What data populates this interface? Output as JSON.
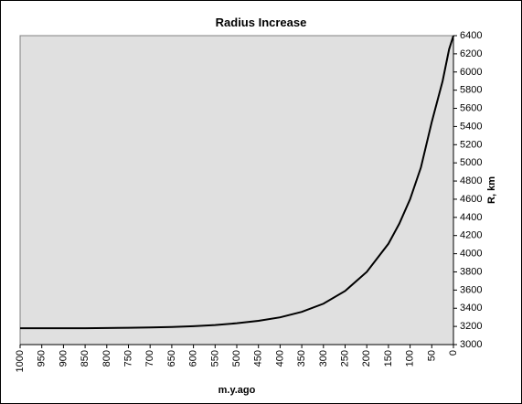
{
  "chart_data": {
    "type": "line",
    "title": "Radius Increase",
    "xlabel": "m.y.ago",
    "ylabel": "R, km",
    "x_reversed": true,
    "xlim": [
      1000,
      0
    ],
    "ylim": [
      3000,
      6400
    ],
    "x_ticks": [
      1000,
      950,
      900,
      850,
      800,
      750,
      700,
      650,
      600,
      550,
      500,
      450,
      400,
      350,
      300,
      250,
      200,
      150,
      100,
      50,
      0
    ],
    "y_ticks": [
      3000,
      3200,
      3400,
      3600,
      3800,
      4000,
      4200,
      4400,
      4600,
      4800,
      5000,
      5200,
      5400,
      5600,
      5800,
      6000,
      6200,
      6400
    ],
    "y_axis_position": "right",
    "grid": false,
    "plot_background": "#e0e0e0",
    "line_color": "#000000",
    "series": [
      {
        "x": [
          1000,
          950,
          900,
          850,
          800,
          750,
          700,
          650,
          600,
          550,
          500,
          450,
          400,
          350,
          300,
          250,
          200,
          150,
          125,
          100,
          75,
          50,
          25,
          10,
          0
        ],
        "y": [
          3180,
          3180,
          3180,
          3180,
          3182,
          3185,
          3188,
          3193,
          3202,
          3215,
          3235,
          3262,
          3300,
          3360,
          3450,
          3590,
          3800,
          4110,
          4330,
          4600,
          4950,
          5450,
          5900,
          6250,
          6400
        ]
      }
    ]
  }
}
